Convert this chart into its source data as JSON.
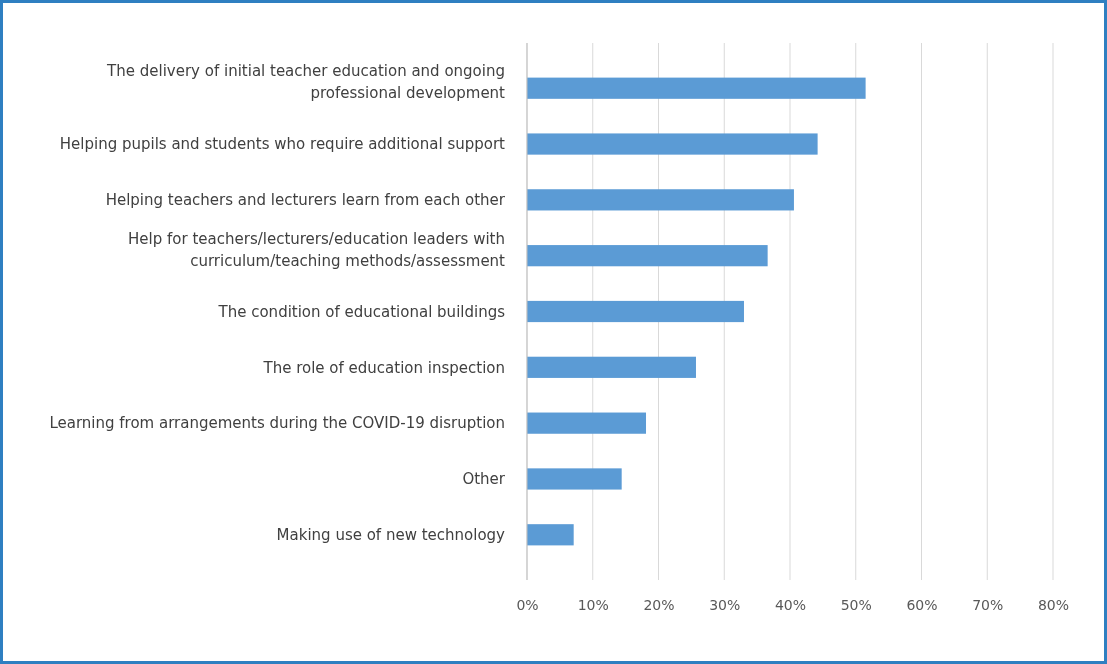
{
  "chart_data": {
    "type": "bar",
    "orientation": "horizontal",
    "categories": [
      "The delivery of initial teacher education and ongoing professional development",
      "Helping pupils and students who require additional support",
      "Helping teachers and lecturers learn from each other",
      "Help for teachers/lecturers/education leaders with curriculum/teaching methods/assessment",
      "The condition of educational buildings",
      "The role of education inspection",
      "Learning from arrangements during the COVID-19 disruption",
      "Other",
      "Making use of new technology"
    ],
    "values": [
      51.5,
      44.2,
      40.6,
      36.6,
      33.0,
      25.7,
      18.1,
      14.4,
      7.1
    ],
    "color": "#5b9bd5",
    "xlim": [
      0,
      80
    ],
    "xticks": [
      {
        "value": 0,
        "label": "0%"
      },
      {
        "value": 10,
        "label": "10%"
      },
      {
        "value": 20,
        "label": "20%"
      },
      {
        "value": 30,
        "label": "30%"
      },
      {
        "value": 40,
        "label": "40%"
      },
      {
        "value": 50,
        "label": "50%"
      },
      {
        "value": 60,
        "label": "60%"
      },
      {
        "value": 70,
        "label": "70%"
      },
      {
        "value": 80,
        "label": "80%"
      }
    ],
    "grid": "x"
  }
}
